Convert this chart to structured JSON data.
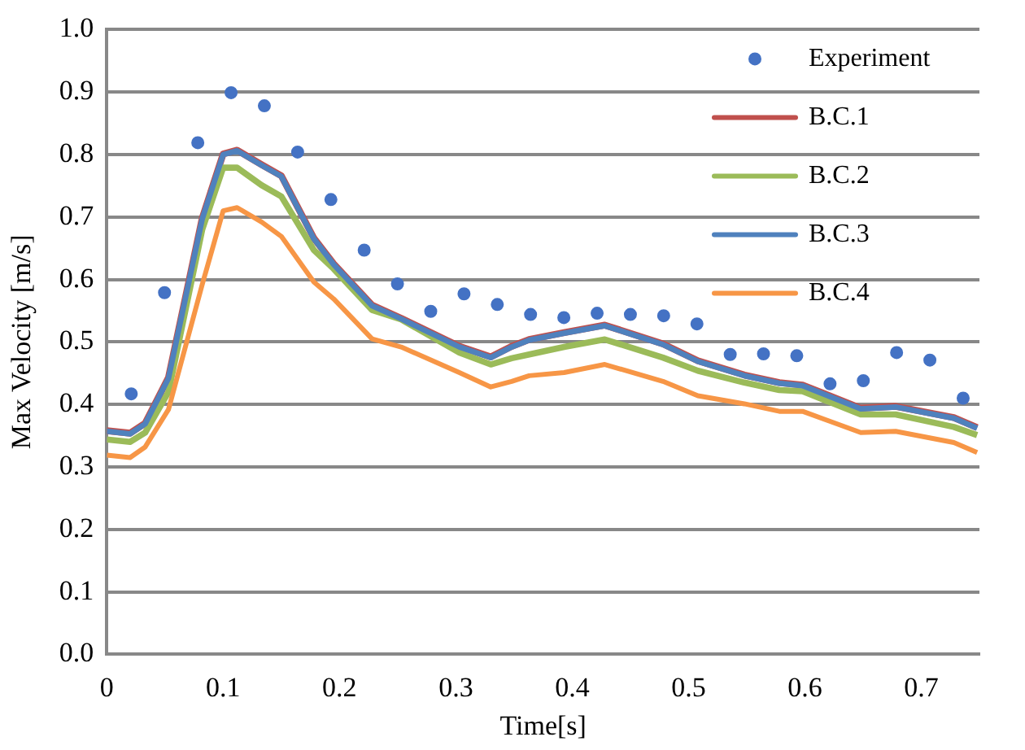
{
  "chart_data": {
    "type": "line",
    "xlabel": "Time[s]",
    "ylabel": "Max Velocity [m/s]",
    "xlim": [
      0,
      0.75
    ],
    "xticks": [
      0,
      0.1,
      0.2,
      0.3,
      0.4,
      0.5,
      0.6,
      0.7
    ],
    "ylim": [
      0,
      1
    ],
    "yticks": [
      {
        "value": 0,
        "label": "0.0"
      },
      0.1,
      0.2,
      0.3,
      0.4,
      0.5,
      0.6,
      0.7,
      0.8,
      0.9,
      {
        "value": 1,
        "label": "1.0"
      }
    ],
    "grid": "y",
    "legend": "top right",
    "line_style": "solid",
    "series": [
      {
        "name": "Experiment",
        "type": "scatter",
        "marker": "circle",
        "color": "#4472c4",
        "x": [
          0.021,
          0.0496,
          0.0782,
          0.1068,
          0.1354,
          0.164,
          0.1926,
          0.2212,
          0.2498,
          0.2784,
          0.307,
          0.3356,
          0.3642,
          0.3928,
          0.4214,
          0.45,
          0.4786,
          0.5072,
          0.5358,
          0.5644,
          0.593,
          0.6216,
          0.6502,
          0.6788,
          0.7074,
          0.736
        ],
        "values": [
          0.417,
          0.579,
          0.819,
          0.899,
          0.878,
          0.804,
          0.728,
          0.647,
          0.593,
          0.549,
          0.577,
          0.56,
          0.544,
          0.539,
          0.546,
          0.544,
          0.542,
          0.529,
          0.48,
          0.481,
          0.478,
          0.433,
          0.438,
          0.483,
          0.471,
          0.41
        ]
      },
      {
        "name": "B.C.1",
        "color": "#c0504d",
        "x": [
          0,
          0.02,
          0.033,
          0.053,
          0.082,
          0.1,
          0.112,
          0.133,
          0.15,
          0.178,
          0.195,
          0.228,
          0.253,
          0.303,
          0.33,
          0.348,
          0.363,
          0.393,
          0.428,
          0.478,
          0.508,
          0.548,
          0.578,
          0.598,
          0.648,
          0.678,
          0.728,
          0.748
        ],
        "values": [
          0.358,
          0.354,
          0.37,
          0.443,
          0.698,
          0.801,
          0.807,
          0.784,
          0.766,
          0.666,
          0.625,
          0.559,
          0.538,
          0.493,
          0.476,
          0.493,
          0.504,
          0.515,
          0.527,
          0.497,
          0.47,
          0.447,
          0.435,
          0.431,
          0.394,
          0.397,
          0.379,
          0.363
        ]
      },
      {
        "name": "B.C.2",
        "color": "#9bbb59",
        "x": [
          0,
          0.02,
          0.033,
          0.053,
          0.082,
          0.1,
          0.112,
          0.133,
          0.15,
          0.178,
          0.195,
          0.228,
          0.253,
          0.303,
          0.33,
          0.348,
          0.363,
          0.393,
          0.428,
          0.478,
          0.508,
          0.548,
          0.578,
          0.598,
          0.648,
          0.678,
          0.728,
          0.748
        ],
        "values": [
          0.344,
          0.34,
          0.355,
          0.42,
          0.68,
          0.779,
          0.779,
          0.751,
          0.733,
          0.647,
          0.617,
          0.551,
          0.536,
          0.483,
          0.464,
          0.474,
          0.48,
          0.492,
          0.504,
          0.475,
          0.454,
          0.435,
          0.423,
          0.421,
          0.384,
          0.384,
          0.364,
          0.351
        ]
      },
      {
        "name": "B.C.3",
        "color": "#4f81bd",
        "x": [
          0,
          0.02,
          0.033,
          0.053,
          0.082,
          0.1,
          0.112,
          0.133,
          0.15,
          0.178,
          0.195,
          0.228,
          0.253,
          0.303,
          0.33,
          0.348,
          0.363,
          0.393,
          0.428,
          0.478,
          0.508,
          0.548,
          0.578,
          0.598,
          0.648,
          0.678,
          0.728,
          0.748
        ],
        "values": [
          0.357,
          0.353,
          0.369,
          0.442,
          0.697,
          0.8,
          0.806,
          0.783,
          0.765,
          0.665,
          0.624,
          0.558,
          0.537,
          0.492,
          0.475,
          0.492,
          0.503,
          0.514,
          0.526,
          0.496,
          0.469,
          0.446,
          0.434,
          0.43,
          0.393,
          0.396,
          0.378,
          0.362
        ]
      },
      {
        "name": "B.C.4",
        "color": "#f79646",
        "x": [
          0,
          0.02,
          0.033,
          0.053,
          0.082,
          0.1,
          0.112,
          0.133,
          0.15,
          0.178,
          0.195,
          0.228,
          0.253,
          0.303,
          0.33,
          0.348,
          0.363,
          0.393,
          0.428,
          0.478,
          0.508,
          0.548,
          0.578,
          0.598,
          0.648,
          0.678,
          0.728,
          0.748
        ],
        "values": [
          0.319,
          0.315,
          0.332,
          0.392,
          0.592,
          0.71,
          0.715,
          0.692,
          0.669,
          0.596,
          0.569,
          0.505,
          0.492,
          0.451,
          0.428,
          0.437,
          0.446,
          0.451,
          0.464,
          0.437,
          0.414,
          0.401,
          0.389,
          0.389,
          0.355,
          0.357,
          0.339,
          0.323
        ]
      }
    ]
  }
}
